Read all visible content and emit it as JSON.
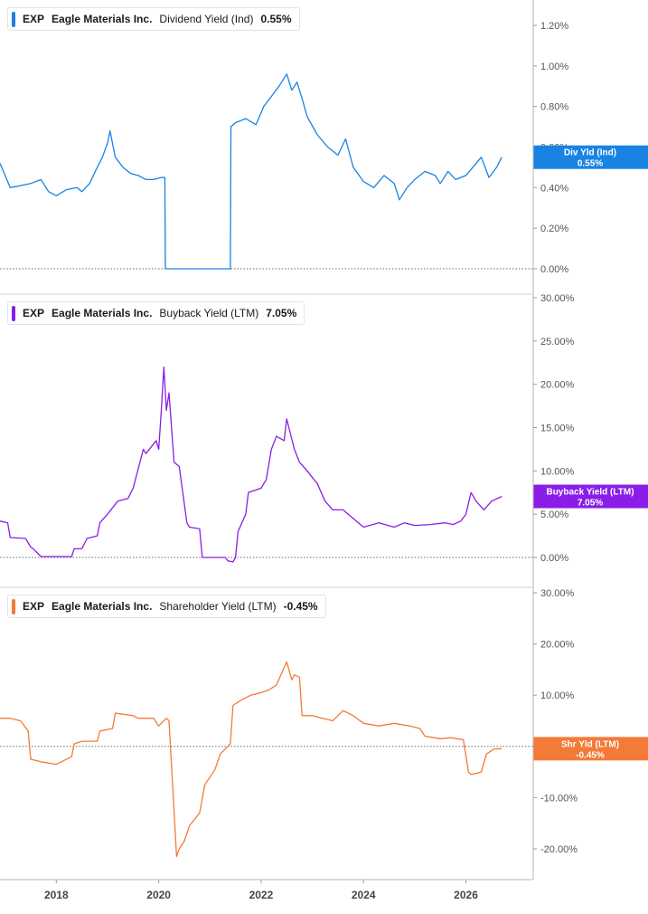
{
  "x_axis": {
    "ticks": [
      {
        "label": "2018",
        "year": 2018.0
      },
      {
        "label": "2020",
        "year": 2020.0
      },
      {
        "label": "2022",
        "year": 2022.0
      },
      {
        "label": "2024",
        "year": 2024.0
      },
      {
        "label": "2026",
        "year": 2026.0
      }
    ],
    "range": [
      2016.9,
      2026.95
    ]
  },
  "chart_data": [
    {
      "type": "line",
      "legend": {
        "ticker": "EXP",
        "company": "Eagle Materials Inc.",
        "metric": "Dividend Yield (Ind)",
        "value": "0.55%"
      },
      "color": "#1883e3",
      "tag": {
        "line1": "Div Yld (Ind)",
        "line2": "0.55%",
        "value": 0.55
      },
      "ylim": [
        0,
        1.3
      ],
      "y_ticks": [
        {
          "label": "1.20%",
          "value": 1.2
        },
        {
          "label": "1.00%",
          "value": 1.0
        },
        {
          "label": "0.80%",
          "value": 0.8
        },
        {
          "label": "0.60%",
          "value": 0.6
        },
        {
          "label": "0.40%",
          "value": 0.4
        },
        {
          "label": "0.20%",
          "value": 0.2
        },
        {
          "label": "0.00%",
          "value": 0.0
        }
      ],
      "zero_line": true,
      "x": [
        2016.9,
        2017.1,
        2017.3,
        2017.5,
        2017.7,
        2017.85,
        2018.0,
        2018.2,
        2018.4,
        2018.5,
        2018.65,
        2018.8,
        2018.9,
        2019.0,
        2019.05,
        2019.15,
        2019.3,
        2019.45,
        2019.6,
        2019.75,
        2019.9,
        2020.05,
        2020.12,
        2020.13,
        2021.4,
        2021.41,
        2021.5,
        2021.7,
        2021.9,
        2022.05,
        2022.2,
        2022.35,
        2022.5,
        2022.6,
        2022.7,
        2022.8,
        2022.9,
        2023.1,
        2023.3,
        2023.5,
        2023.65,
        2023.8,
        2024.0,
        2024.2,
        2024.4,
        2024.6,
        2024.7,
        2024.85,
        2025.0,
        2025.2,
        2025.4,
        2025.5,
        2025.65,
        2025.8,
        2026.0,
        2026.2,
        2026.3,
        2026.45,
        2026.6,
        2026.7
      ],
      "values": [
        0.52,
        0.4,
        0.41,
        0.42,
        0.44,
        0.38,
        0.36,
        0.39,
        0.4,
        0.38,
        0.42,
        0.5,
        0.55,
        0.62,
        0.68,
        0.55,
        0.5,
        0.47,
        0.46,
        0.44,
        0.44,
        0.45,
        0.45,
        0.0,
        0.0,
        0.7,
        0.72,
        0.74,
        0.71,
        0.8,
        0.85,
        0.9,
        0.96,
        0.88,
        0.92,
        0.84,
        0.75,
        0.66,
        0.6,
        0.56,
        0.64,
        0.5,
        0.43,
        0.4,
        0.46,
        0.42,
        0.34,
        0.4,
        0.44,
        0.48,
        0.46,
        0.42,
        0.48,
        0.44,
        0.46,
        0.52,
        0.55,
        0.45,
        0.5,
        0.55
      ]
    },
    {
      "type": "line",
      "legend": {
        "ticker": "EXP",
        "company": "Eagle Materials Inc.",
        "metric": "Buyback Yield (LTM)",
        "value": "7.05%"
      },
      "color": "#8a1ee8",
      "tag": {
        "line1": "Buyback Yield (LTM)",
        "line2": "7.05%",
        "value": 7.05
      },
      "ylim": [
        -1.5,
        30
      ],
      "y_ticks": [
        {
          "label": "30.00%",
          "value": 30
        },
        {
          "label": "25.00%",
          "value": 25
        },
        {
          "label": "20.00%",
          "value": 20
        },
        {
          "label": "15.00%",
          "value": 15
        },
        {
          "label": "10.00%",
          "value": 10
        },
        {
          "label": "5.00%",
          "value": 5
        },
        {
          "label": "0.00%",
          "value": 0
        }
      ],
      "zero_line": true,
      "x": [
        2016.9,
        2017.05,
        2017.1,
        2017.4,
        2017.5,
        2017.55,
        2017.7,
        2018.3,
        2018.35,
        2018.5,
        2018.6,
        2018.8,
        2018.85,
        2019.0,
        2019.2,
        2019.4,
        2019.5,
        2019.7,
        2019.75,
        2019.95,
        2020.0,
        2020.05,
        2020.1,
        2020.15,
        2020.2,
        2020.3,
        2020.4,
        2020.55,
        2020.6,
        2020.8,
        2020.85,
        2021.3,
        2021.35,
        2021.45,
        2021.5,
        2021.55,
        2021.7,
        2021.75,
        2022.0,
        2022.1,
        2022.2,
        2022.3,
        2022.45,
        2022.5,
        2022.65,
        2022.75,
        2022.9,
        2023.1,
        2023.25,
        2023.4,
        2023.6,
        2023.8,
        2024.0,
        2024.3,
        2024.6,
        2024.8,
        2025.0,
        2025.3,
        2025.6,
        2025.75,
        2025.9,
        2026.0,
        2026.1,
        2026.2,
        2026.35,
        2026.5,
        2026.7
      ],
      "values": [
        4.2,
        4.0,
        2.3,
        2.2,
        1.2,
        1.0,
        0.1,
        0.1,
        1.0,
        1.0,
        2.2,
        2.5,
        4.0,
        5.0,
        6.5,
        6.8,
        8.0,
        12.5,
        12.0,
        13.5,
        12.5,
        17.0,
        22.0,
        17.0,
        19.0,
        11.0,
        10.5,
        4.0,
        3.5,
        3.3,
        0.0,
        0.0,
        -0.4,
        -0.5,
        0.0,
        3.0,
        5.0,
        7.5,
        8.0,
        9.0,
        12.5,
        14.0,
        13.5,
        16.0,
        12.5,
        11.0,
        10.0,
        8.5,
        6.5,
        5.5,
        5.5,
        4.5,
        3.5,
        4.0,
        3.5,
        4.0,
        3.7,
        3.8,
        4.0,
        3.8,
        4.2,
        5.0,
        7.5,
        6.5,
        5.5,
        6.5,
        7.05
      ]
    },
    {
      "type": "line",
      "legend": {
        "ticker": "EXP",
        "company": "Eagle Materials Inc.",
        "metric": "Shareholder Yield (LTM)",
        "value": "-0.45%"
      },
      "color": "#f37a37",
      "tag": {
        "line1": "Shr Yld (LTM)",
        "line2": "-0.45%",
        "value": -0.45
      },
      "ylim": [
        -24,
        30
      ],
      "y_ticks": [
        {
          "label": "30.00%",
          "value": 30
        },
        {
          "label": "20.00%",
          "value": 20
        },
        {
          "label": "10.00%",
          "value": 10
        },
        {
          "label": "0.00%",
          "value": 0
        },
        {
          "label": "-10.00%",
          "value": -10
        },
        {
          "label": "-20.00%",
          "value": -20
        }
      ],
      "zero_line": true,
      "x": [
        2016.9,
        2017.1,
        2017.3,
        2017.45,
        2017.5,
        2017.7,
        2018.0,
        2018.1,
        2018.3,
        2018.35,
        2018.5,
        2018.8,
        2018.85,
        2019.1,
        2019.15,
        2019.5,
        2019.6,
        2019.9,
        2020.0,
        2020.15,
        2020.2,
        2020.35,
        2020.4,
        2020.5,
        2020.6,
        2020.8,
        2020.9,
        2021.1,
        2021.2,
        2021.4,
        2021.45,
        2021.6,
        2021.8,
        2022.0,
        2022.15,
        2022.3,
        2022.5,
        2022.6,
        2022.65,
        2022.75,
        2022.8,
        2023.0,
        2023.2,
        2023.4,
        2023.6,
        2023.8,
        2024.0,
        2024.3,
        2024.6,
        2024.9,
        2025.1,
        2025.2,
        2025.5,
        2025.7,
        2025.95,
        2026.05,
        2026.1,
        2026.3,
        2026.4,
        2026.55,
        2026.7
      ],
      "values": [
        5.5,
        5.5,
        5.0,
        3.0,
        -2.5,
        -3.0,
        -3.5,
        -3.0,
        -2.0,
        0.5,
        1.0,
        1.0,
        3.0,
        3.5,
        6.5,
        6.0,
        5.5,
        5.5,
        4.0,
        5.5,
        5.0,
        -21.5,
        -20.0,
        -18.5,
        -15.5,
        -13.0,
        -7.5,
        -4.5,
        -1.5,
        0.5,
        8.0,
        9.0,
        10.0,
        10.5,
        11.0,
        12.0,
        16.5,
        13.0,
        14.0,
        13.5,
        6.0,
        6.0,
        5.5,
        5.0,
        7.0,
        6.0,
        4.5,
        4.0,
        4.5,
        4.0,
        3.5,
        2.0,
        1.5,
        1.7,
        1.3,
        -5.0,
        -5.5,
        -5.0,
        -1.5,
        -0.5,
        -0.45
      ]
    }
  ]
}
